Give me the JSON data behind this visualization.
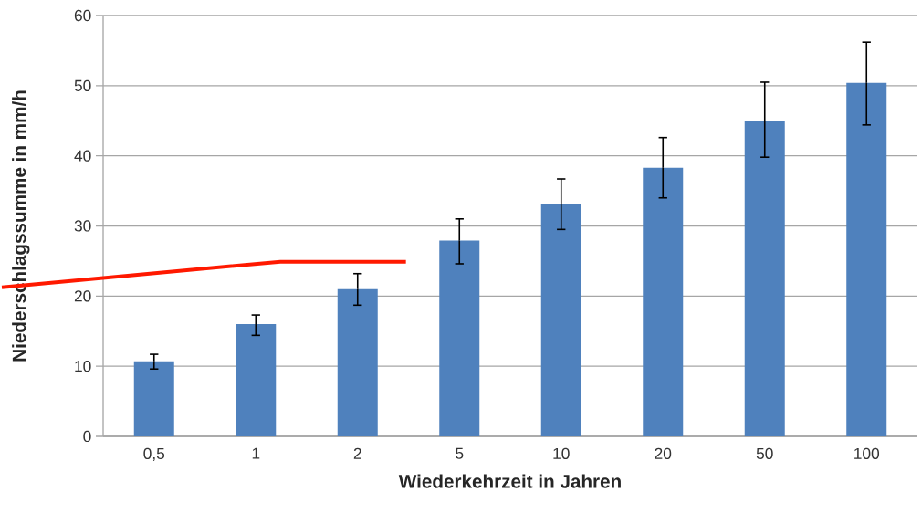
{
  "chart_data": {
    "type": "bar",
    "xlabel": "Wiederkehrzeit in Jahren",
    "ylabel": "Niederschlagssumme in mm/h",
    "categories": [
      "0,5",
      "1",
      "2",
      "5",
      "10",
      "20",
      "50",
      "100"
    ],
    "values": [
      10.7,
      16.0,
      21.0,
      27.9,
      33.2,
      38.3,
      45.0,
      50.4
    ],
    "errors": [
      [
        9.6,
        11.7
      ],
      [
        14.4,
        17.3
      ],
      [
        18.7,
        23.2
      ],
      [
        24.6,
        31.0
      ],
      [
        29.5,
        36.7
      ],
      [
        34.0,
        42.6
      ],
      [
        39.8,
        50.5
      ],
      [
        44.4,
        56.2
      ]
    ],
    "color": "#4f81bd",
    "ylim": [
      0,
      60
    ],
    "yticks": [
      0,
      10,
      20,
      30,
      40,
      50,
      60
    ],
    "grid": "y"
  }
}
